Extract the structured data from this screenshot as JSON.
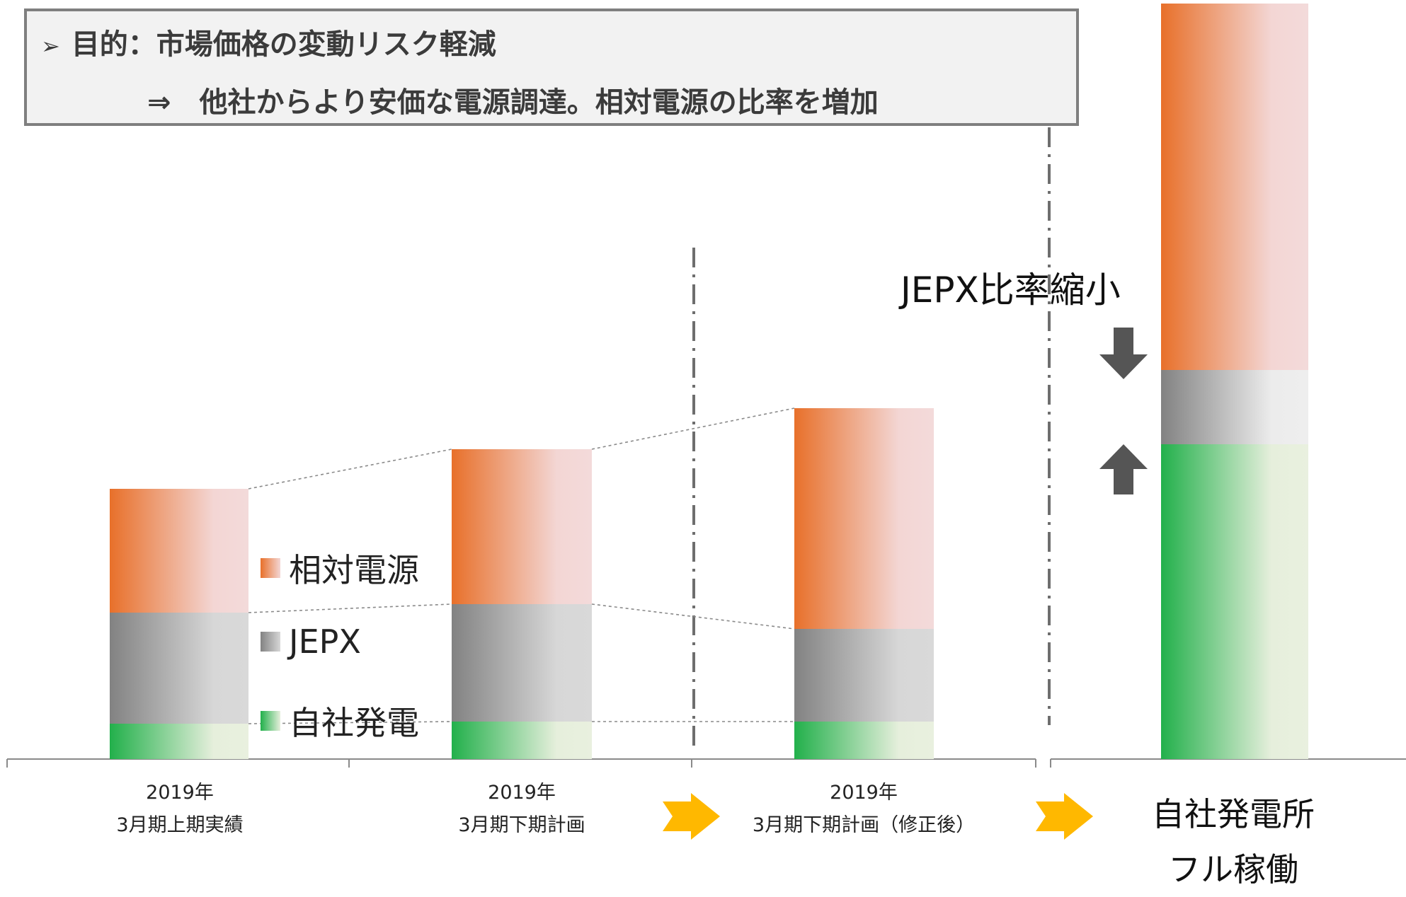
{
  "header": {
    "line1_marker": "➢",
    "line1": "目的：市場価格の変動リスク軽減",
    "line2": "⇒　他社からより安価な電源調達。相対電源の比率を増加"
  },
  "chart_data": {
    "type": "bar",
    "stacked": true,
    "categories": [
      "2019年\n3月期上期実績",
      "2019年\n3月期下期計画",
      "2019年\n3月期下期計画（修正後）",
      "自社発電所\nフル稼働"
    ],
    "series": [
      {
        "name": "自社発電",
        "color": "#22b04b",
        "values": [
          50,
          53,
          53,
          445
        ]
      },
      {
        "name": "JEPX",
        "color": "#8a8a8a",
        "values": [
          157,
          166,
          131,
          105
        ]
      },
      {
        "name": "相対電源",
        "color": "#e8702a",
        "values": [
          175,
          219,
          312,
          518
        ]
      }
    ],
    "ylim": [
      0,
      1070
    ],
    "legend": "inside-center-left",
    "annotation": "JEPX比率縮小",
    "arrow_icons": [
      "arrow-down-icon",
      "arrow-up-icon",
      "arrow-right-icon"
    ]
  },
  "legend": [
    {
      "label": "相対電源",
      "color": "#e8702a"
    },
    {
      "label": "JEPX",
      "color": "#8a8a8a"
    },
    {
      "label": "自社発電",
      "color": "#22b04b"
    }
  ],
  "labels": {
    "c1_l1": "2019年",
    "c1_l2": "3月期上期実績",
    "c2_l1": "2019年",
    "c2_l2": "3月期下期計画",
    "c3_l1": "2019年",
    "c3_l2": "3月期下期計画（修正後）",
    "c4_l1": "自社発電所",
    "c4_l2": "フル稼働"
  }
}
